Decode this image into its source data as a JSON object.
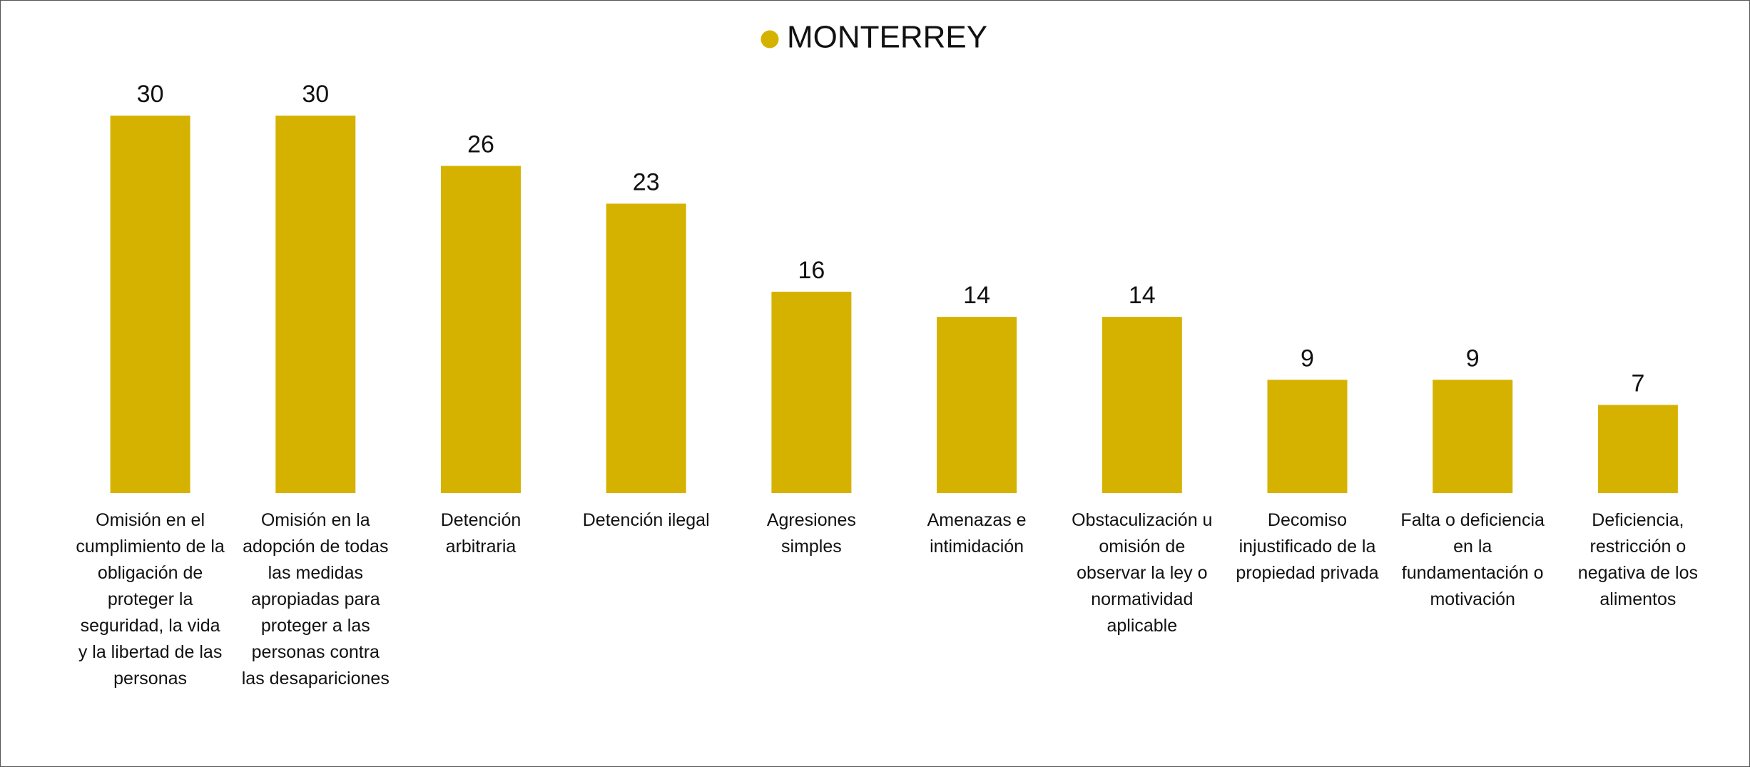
{
  "chart_data": {
    "type": "bar",
    "categories": [
      "Omisión en el cumplimiento de la obligación de proteger la seguridad, la vida y la libertad de las personas",
      "Omisión en la adopción de todas las medidas apropiadas para proteger a las personas contra las desapariciones",
      "Detención arbitraria",
      "Detención ilegal",
      "Agresiones simples",
      "Amenazas e intimidación",
      "Obstaculización u omisión de observar la ley o normatividad aplicable",
      "Decomiso injustificado de la propiedad privada",
      "Falta o deficiencia en la fundamentación o motivación",
      "Deficiencia, restricción o negativa de los alimentos"
    ],
    "series": [
      {
        "name": "MONTERREY",
        "color": "#d6b200",
        "values": [
          30,
          30,
          26,
          23,
          16,
          14,
          14,
          9,
          9,
          7
        ]
      }
    ],
    "ylim": [
      0,
      30
    ],
    "legend": "top"
  }
}
